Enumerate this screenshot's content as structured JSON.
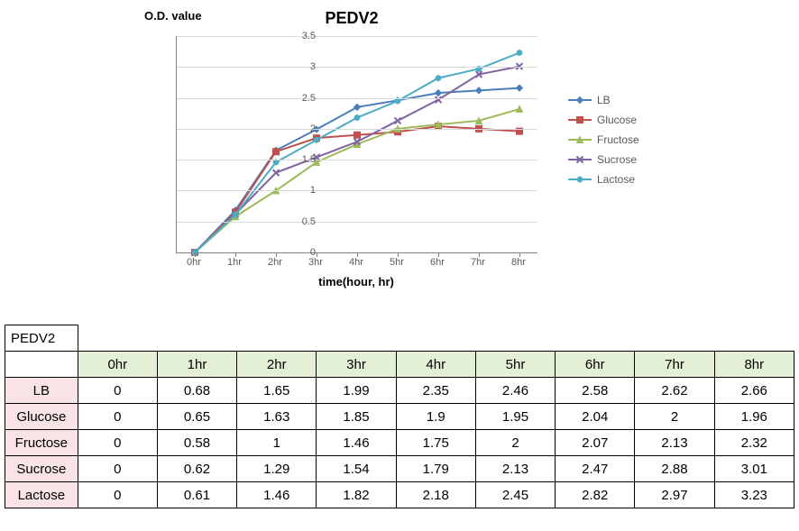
{
  "chart": {
    "type": "line",
    "title": "PEDV2",
    "y_axis_title": "O.D.  value",
    "x_axis_title": "time(hour,  hr)",
    "title_fontsize": 18,
    "axis_title_fontsize": 13,
    "tick_fontsize": 11,
    "background_color": "#ffffff",
    "grid_color": "#d9d9d9",
    "axis_color": "#808080",
    "ylim": [
      0,
      3.5
    ],
    "ytick_step": 0.5,
    "ytick_labels": [
      "0",
      "0.5",
      "1",
      "1.5",
      "2",
      "2.5",
      "3",
      "3.5"
    ],
    "x_categories": [
      "0hr",
      "1hr",
      "2hr",
      "3hr",
      "4hr",
      "5hr",
      "6hr",
      "7hr",
      "8hr"
    ],
    "line_width": 2,
    "marker_size": 7,
    "series": [
      {
        "name": "LB",
        "color": "#4a7ebb",
        "marker": "diamond",
        "values": [
          0,
          0.68,
          1.65,
          1.99,
          2.35,
          2.46,
          2.58,
          2.62,
          2.66
        ]
      },
      {
        "name": "Glucose",
        "color": "#c0504d",
        "marker": "square",
        "values": [
          0,
          0.65,
          1.63,
          1.85,
          1.9,
          1.95,
          2.04,
          2,
          1.96
        ]
      },
      {
        "name": "Fructose",
        "color": "#9bbb59",
        "marker": "triangle",
        "values": [
          0,
          0.58,
          1,
          1.46,
          1.75,
          2,
          2.07,
          2.13,
          2.32
        ]
      },
      {
        "name": "Sucrose",
        "color": "#8064a2",
        "marker": "x",
        "values": [
          0,
          0.62,
          1.29,
          1.54,
          1.79,
          2.13,
          2.47,
          2.88,
          3.01
        ]
      },
      {
        "name": "Lactose",
        "color": "#4bacc6",
        "marker": "star",
        "values": [
          0,
          0.61,
          1.46,
          1.82,
          2.18,
          2.45,
          2.82,
          2.97,
          3.23
        ]
      }
    ]
  },
  "table": {
    "corner_label": "PEDV2",
    "col_header_bg": "#e4f0d6",
    "row_header_bg": "#f8e4e4",
    "border_color": "#000000",
    "fontsize": 15,
    "columns": [
      "0hr",
      "1hr",
      "2hr",
      "3hr",
      "4hr",
      "5hr",
      "6hr",
      "7hr",
      "8hr"
    ],
    "rows": [
      {
        "label": "LB",
        "values": [
          "0",
          "0.68",
          "1.65",
          "1.99",
          "2.35",
          "2.46",
          "2.58",
          "2.62",
          "2.66"
        ]
      },
      {
        "label": "Glucose",
        "values": [
          "0",
          "0.65",
          "1.63",
          "1.85",
          "1.9",
          "1.95",
          "2.04",
          "2",
          "1.96"
        ]
      },
      {
        "label": "Fructose",
        "values": [
          "0",
          "0.58",
          "1",
          "1.46",
          "1.75",
          "2",
          "2.07",
          "2.13",
          "2.32"
        ]
      },
      {
        "label": "Sucrose",
        "values": [
          "0",
          "0.62",
          "1.29",
          "1.54",
          "1.79",
          "2.13",
          "2.47",
          "2.88",
          "3.01"
        ]
      },
      {
        "label": "Lactose",
        "values": [
          "0",
          "0.61",
          "1.46",
          "1.82",
          "2.18",
          "2.45",
          "2.82",
          "2.97",
          "3.23"
        ]
      }
    ]
  }
}
